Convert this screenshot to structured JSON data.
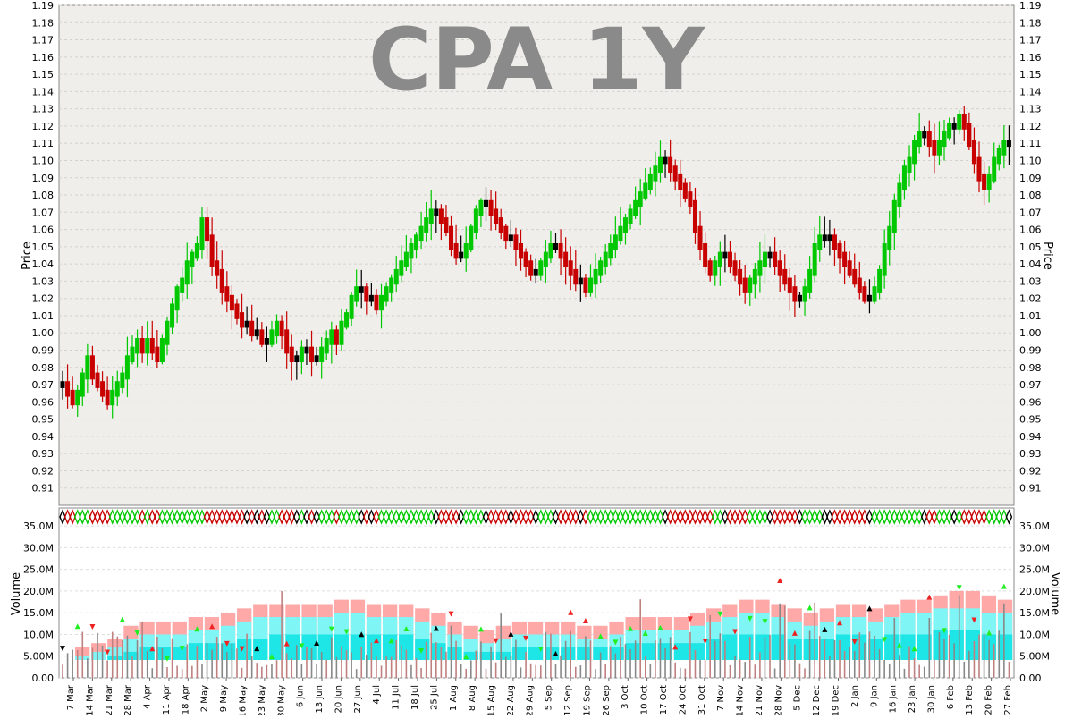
{
  "chart_data": [
    {
      "type": "candlestick",
      "title": "CPA 1Y",
      "ylabel": "Price",
      "ylim": [
        0.9,
        1.19
      ],
      "yticks": [
        0.91,
        0.92,
        0.93,
        0.94,
        0.95,
        0.96,
        0.97,
        0.98,
        0.99,
        1.0,
        1.01,
        1.02,
        1.03,
        1.04,
        1.05,
        1.06,
        1.07,
        1.08,
        1.09,
        1.1,
        1.11,
        1.12,
        1.13,
        1.14,
        1.15,
        1.16,
        1.17,
        1.18,
        1.19
      ],
      "grid": true,
      "colors": {
        "up": "#00c800",
        "down": "#c80000",
        "flat": "#000000"
      },
      "series": [
        {
          "values": [
            0.97,
            0.965,
            0.96,
            0.965,
            0.975,
            0.985,
            0.975,
            0.97,
            0.965,
            0.96,
            0.965,
            0.97,
            0.975,
            0.985,
            0.99,
            0.995,
            0.99,
            0.995,
            0.99,
            0.985,
            0.995,
            1.005,
            1.015,
            1.025,
            1.03,
            1.04,
            1.045,
            1.05,
            1.065,
            1.055,
            1.04,
            1.035,
            1.025,
            1.02,
            1.015,
            1.01,
            1.005,
            1.005,
            1.0,
            1.0,
            0.995,
            0.995,
            1.0,
            1.005,
            1.0,
            0.99,
            0.985,
            0.985,
            0.99,
            0.99,
            0.985,
            0.985,
            0.99,
            0.995,
            1.0,
            0.995,
            1.005,
            1.01,
            1.02,
            1.025,
            1.025,
            1.02,
            1.02,
            1.015,
            1.02,
            1.025,
            1.03,
            1.035,
            1.04,
            1.045,
            1.05,
            1.055,
            1.06,
            1.065,
            1.07,
            1.07,
            1.065,
            1.06,
            1.05,
            1.045,
            1.045,
            1.05,
            1.06,
            1.07,
            1.075,
            1.075,
            1.07,
            1.065,
            1.06,
            1.055,
            1.055,
            1.05,
            1.045,
            1.04,
            1.035,
            1.035,
            1.04,
            1.045,
            1.05,
            1.05,
            1.045,
            1.04,
            1.035,
            1.03,
            1.03,
            1.025,
            1.03,
            1.035,
            1.04,
            1.045,
            1.05,
            1.055,
            1.06,
            1.065,
            1.07,
            1.075,
            1.08,
            1.085,
            1.09,
            1.095,
            1.1,
            1.1,
            1.095,
            1.09,
            1.085,
            1.08,
            1.075,
            1.06,
            1.05,
            1.04,
            1.035,
            1.04,
            1.045,
            1.045,
            1.04,
            1.035,
            1.03,
            1.025,
            1.03,
            1.035,
            1.04,
            1.045,
            1.045,
            1.04,
            1.035,
            1.03,
            1.025,
            1.02,
            1.02,
            1.025,
            1.035,
            1.05,
            1.055,
            1.055,
            1.055,
            1.05,
            1.045,
            1.04,
            1.035,
            1.03,
            1.025,
            1.02,
            1.02,
            1.025,
            1.035,
            1.05,
            1.06,
            1.075,
            1.085,
            1.095,
            1.1,
            1.11,
            1.115,
            1.115,
            1.11,
            1.105,
            1.11,
            1.115,
            1.12,
            1.12,
            1.125,
            1.12,
            1.11,
            1.1,
            1.09,
            1.085,
            1.09,
            1.1,
            1.105,
            1.11,
            1.11
          ]
        }
      ]
    },
    {
      "type": "bar",
      "ylabel": "Volume",
      "ylim": [
        0,
        37500000
      ],
      "yticks": [
        "0.00",
        "5.00M",
        "10.0M",
        "15.0M",
        "20.0M",
        "25.0M",
        "30.0M",
        "35.0M"
      ],
      "yvalues": [
        0,
        5000000,
        10000000,
        15000000,
        20000000,
        25000000,
        30000000,
        35000000
      ],
      "grid": true,
      "bands": [
        {
          "name": "",
          "color": "#ffa8a8",
          "values": [
            7000000.0,
            8000000.0,
            9000000.0,
            12000000.0,
            13000000.0,
            13000000.0,
            13000000.0,
            14000000.0,
            14000000.0,
            15000000.0,
            16000000.0,
            17000000.0,
            17000000.0,
            17000000.0,
            17000000.0,
            17000000.0,
            18000000.0,
            18000000.0,
            17000000.0,
            17000000.0,
            17000000.0,
            16000000.0,
            15000000.0,
            13000000.0,
            12000000.0,
            11000000.0,
            12000000.0,
            13000000.0,
            13000000.0,
            13000000.0,
            13000000.0,
            12000000.0,
            12000000.0,
            13000000.0,
            14000000.0,
            14000000.0,
            14000000.0,
            14000000.0,
            15000000.0,
            16000000.0,
            17000000.0,
            18000000.0,
            18000000.0,
            17000000.0,
            16000000.0,
            15000000.0,
            16000000.0,
            17000000.0,
            17000000.0,
            16000000.0,
            17000000.0,
            18000000.0,
            18000000.0,
            19000000.0,
            20000000.0,
            20000000.0,
            19000000.0,
            18000000.0
          ]
        },
        {
          "name": "",
          "color": "#7ff5f5",
          "values": [
            5000000.0,
            6000000.0,
            7000000.0,
            9000000.0,
            10000000.0,
            10000000.0,
            10000000.0,
            11000000.0,
            11000000.0,
            12000000.0,
            13000000.0,
            14000000.0,
            14000000.0,
            14000000.0,
            14000000.0,
            14000000.0,
            15000000.0,
            15000000.0,
            14000000.0,
            14000000.0,
            14000000.0,
            13000000.0,
            12000000.0,
            10000000.0,
            9000000.0,
            8000000.0,
            9000000.0,
            10000000.0,
            10000000.0,
            10000000.0,
            10000000.0,
            9000000.0,
            9000000.0,
            10000000.0,
            11000000.0,
            11000000.0,
            11000000.0,
            11000000.0,
            12000000.0,
            13000000.0,
            14000000.0,
            15000000.0,
            15000000.0,
            14000000.0,
            13000000.0,
            12000000.0,
            13000000.0,
            14000000.0,
            14000000.0,
            13000000.0,
            14000000.0,
            15000000.0,
            15000000.0,
            16000000.0,
            16000000.0,
            16000000.0,
            15000000.0,
            15000000.0
          ]
        },
        {
          "name": "",
          "color": "#1fe6e6",
          "values": [
            3000000.0,
            4000000.0,
            5000000.0,
            6000000.0,
            7000000.0,
            7000000.0,
            7000000.0,
            8000000.0,
            8000000.0,
            8000000.0,
            9000000.0,
            9000000.0,
            10000000.0,
            10000000.0,
            10000000.0,
            10000000.0,
            10000000.0,
            10000000.0,
            10000000.0,
            10000000.0,
            10000000.0,
            9000000.0,
            8000000.0,
            7000000.0,
            6000000.0,
            6000000.0,
            6000000.0,
            7000000.0,
            7000000.0,
            7000000.0,
            7000000.0,
            7000000.0,
            7000000.0,
            7000000.0,
            8000000.0,
            8000000.0,
            8000000.0,
            8000000.0,
            8000000.0,
            9000000.0,
            10000000.0,
            10000000.0,
            10000000.0,
            10000000.0,
            9000000.0,
            9000000.0,
            9000000.0,
            10000000.0,
            10000000.0,
            9000000.0,
            10000000.0,
            10000000.0,
            10000000.0,
            11000000.0,
            11000000.0,
            11000000.0,
            10000000.0,
            10000000.0
          ]
        }
      ]
    }
  ],
  "x_axis": {
    "labels": [
      "7 Mar",
      "14 Mar",
      "21 Mar",
      "28 Mar",
      "4 Apr",
      "11 Apr",
      "18 Apr",
      "2 May",
      "9 May",
      "16 May",
      "23 May",
      "30 May",
      "6 Jun",
      "13 Jun",
      "20 Jun",
      "27 Jun",
      "4 Jul",
      "11 Jul",
      "18 Jul",
      "25 Jul",
      "1 Aug",
      "8 Aug",
      "15 Aug",
      "22 Aug",
      "29 Aug",
      "5 Sep",
      "12 Sep",
      "19 Sep",
      "26 Sep",
      "3 Oct",
      "10 Oct",
      "17 Oct",
      "24 Oct",
      "31 Oct",
      "7 Nov",
      "14 Nov",
      "21 Nov",
      "28 Nov",
      "5 Dec",
      "12 Dec",
      "19 Dec",
      "2 Jan",
      "9 Jan",
      "16 Jan",
      "23 Jan",
      "30 Jan",
      "6 Feb",
      "13 Feb",
      "20 Feb",
      "27 Feb"
    ]
  }
}
